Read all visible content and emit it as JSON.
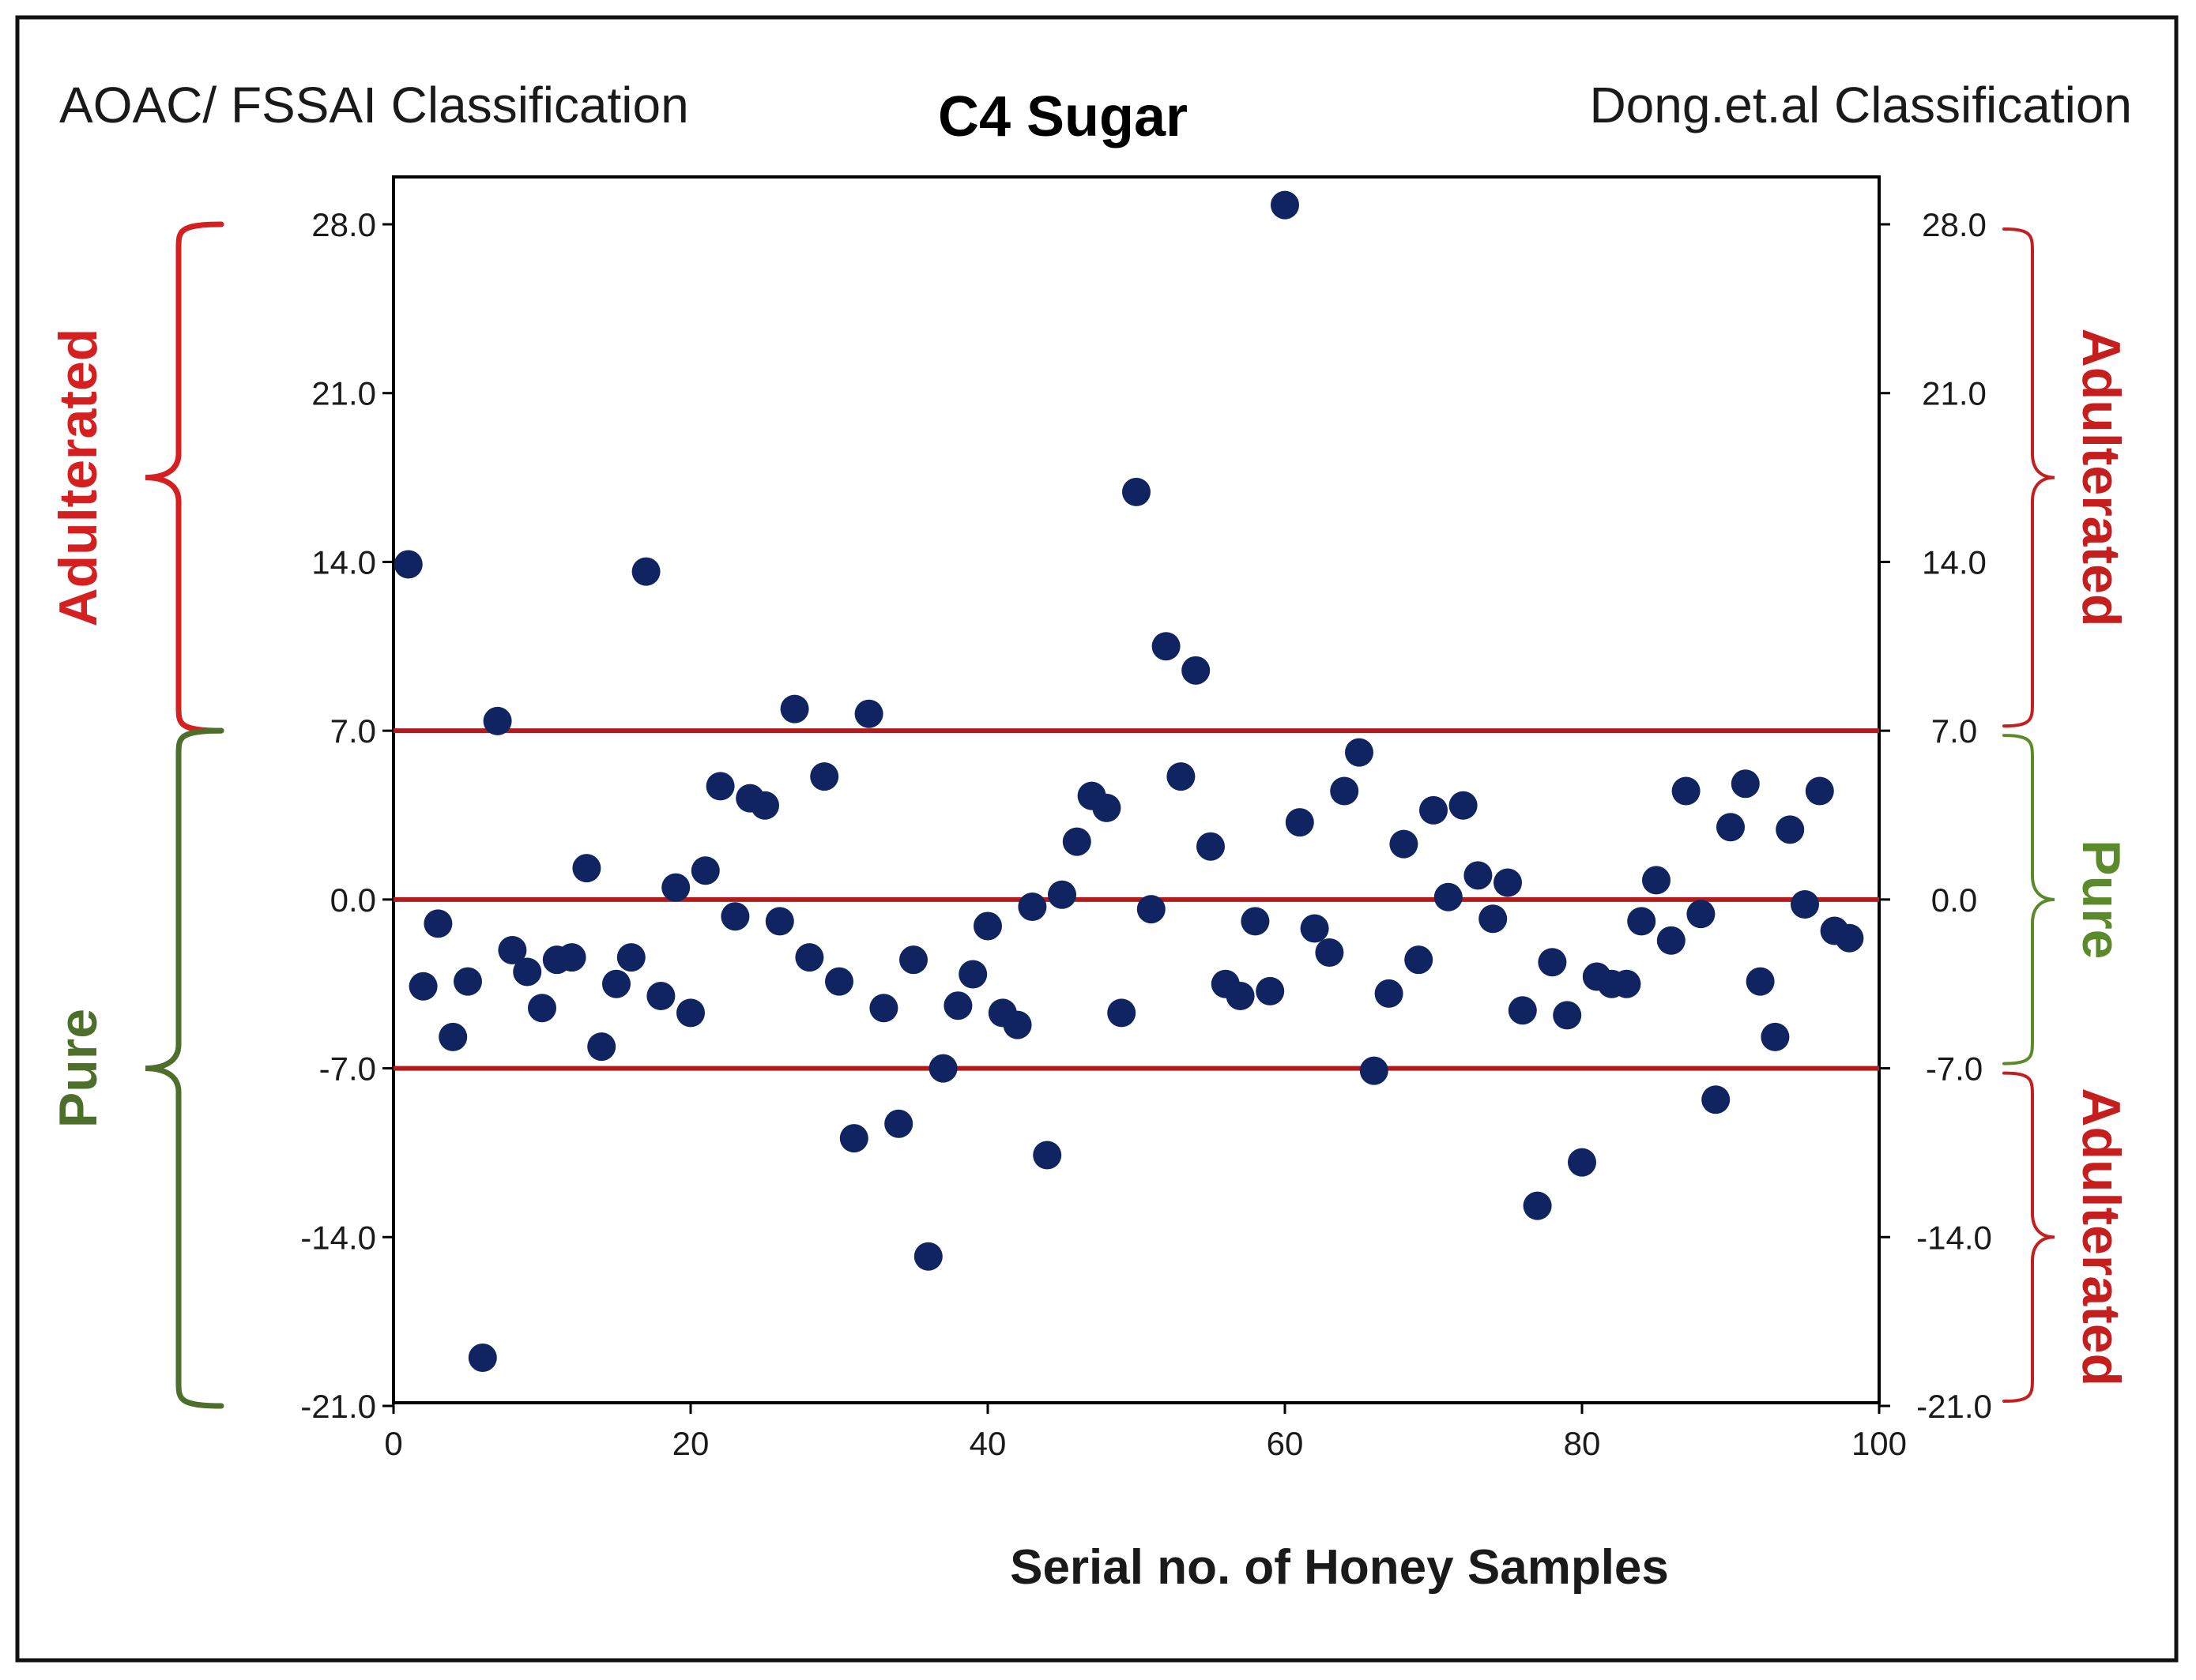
{
  "chart_data": {
    "type": "scatter",
    "title": "C4 Sugar",
    "xlabel": "Serial no. of Honey Samples",
    "ylabel": "",
    "xlim": [
      0,
      100
    ],
    "ylim": [
      -21,
      28
    ],
    "x_ticks": [
      "0",
      "20",
      "40",
      "60",
      "80",
      "100"
    ],
    "y_ticks": [
      "28.0",
      "21.0",
      "14.0",
      "7.0",
      "0.0",
      "-7.0",
      "-14.0",
      "-21.0"
    ],
    "reference_lines": [
      7,
      0,
      -7
    ],
    "left_header": "AOAC/ FSSAI Classification",
    "right_header": "Dong.et.al Classification",
    "left_classes": [
      {
        "label": "Adulterated",
        "from": 7,
        "to": 28,
        "color": "#d42020"
      },
      {
        "label": "Pure",
        "from": -21,
        "to": 7,
        "color": "#4e6f2c"
      }
    ],
    "right_classes": [
      {
        "label": "Adulterated",
        "from": 7,
        "to": 28,
        "color": "#c41e1e"
      },
      {
        "label": "Pure",
        "from": -7,
        "to": 7,
        "color": "#5a8a2a"
      },
      {
        "label": "Adulterated",
        "from": -21,
        "to": -7,
        "color": "#c41e1e"
      }
    ],
    "series": [
      {
        "name": "C4 Sugar",
        "color": "#0f2460",
        "x": [
          1,
          2,
          3,
          4,
          5,
          6,
          7,
          8,
          9,
          10,
          11,
          12,
          13,
          14,
          15,
          16,
          17,
          18,
          19,
          20,
          21,
          22,
          23,
          24,
          25,
          26,
          27,
          28,
          29,
          30,
          31,
          32,
          33,
          34,
          35,
          36,
          37,
          38,
          39,
          40,
          41,
          42,
          43,
          44,
          45,
          46,
          47,
          48,
          49,
          50,
          51,
          52,
          53,
          54,
          55,
          56,
          57,
          58,
          59,
          60,
          61,
          62,
          63,
          64,
          65,
          66,
          67,
          68,
          69,
          70,
          71,
          72,
          73,
          74,
          75,
          76,
          77,
          78,
          79,
          80,
          81,
          82,
          83,
          84,
          85,
          86,
          87,
          88,
          89,
          90,
          91,
          92,
          93,
          94,
          95,
          96,
          97,
          98
        ],
        "y": [
          13.9,
          -3.6,
          -1.0,
          -5.7,
          -3.4,
          -19.0,
          7.4,
          -2.1,
          -3.0,
          -4.5,
          -2.5,
          -2.4,
          1.3,
          -6.1,
          -3.5,
          -2.4,
          13.6,
          -4.0,
          0.5,
          -4.7,
          1.2,
          4.7,
          -0.7,
          4.2,
          3.9,
          -0.9,
          7.9,
          -2.4,
          5.1,
          -3.4,
          -9.9,
          7.7,
          -4.5,
          -9.3,
          -2.5,
          -14.8,
          -7.0,
          -4.4,
          -3.1,
          -1.1,
          -4.7,
          -5.2,
          -0.3,
          -10.6,
          0.2,
          2.4,
          4.3,
          3.8,
          -4.7,
          16.9,
          -0.4,
          10.5,
          5.1,
          9.5,
          2.2,
          -3.5,
          -4.0,
          -0.9,
          -3.8,
          28.8,
          3.2,
          -1.2,
          -2.2,
          4.5,
          6.1,
          -7.1,
          -3.9,
          2.3,
          -2.5,
          3.7,
          0.1,
          3.9,
          1.0,
          -0.8,
          0.7,
          -4.6,
          -12.7,
          -2.6,
          -4.8,
          -10.9,
          -3.2,
          -3.5,
          -3.5,
          -0.9,
          0.8,
          -1.7,
          4.5,
          -0.6,
          -8.3,
          3.0,
          4.8,
          -3.4,
          -5.7,
          2.9,
          -0.2,
          4.5,
          -1.3,
          -1.6
        ]
      }
    ]
  }
}
